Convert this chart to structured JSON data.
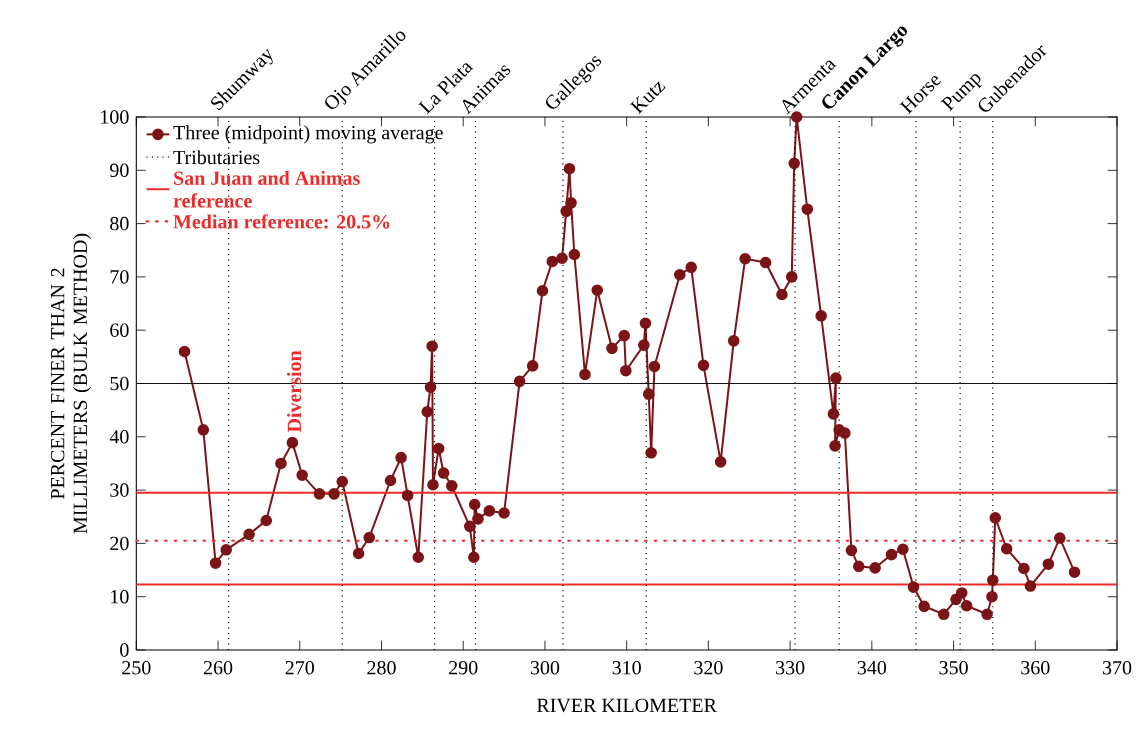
{
  "chart_data": {
    "type": "line",
    "xlabel": "RIVER KILOMETER",
    "ylabel": "PERCENT FINER THAN 2 MILLIMETERS (BULK METHOD)",
    "xlim": [
      250,
      370
    ],
    "ylim": [
      0,
      100
    ],
    "xticks": [
      250,
      260,
      270,
      280,
      290,
      300,
      310,
      320,
      330,
      340,
      350,
      360,
      370
    ],
    "yticks": [
      0,
      10,
      20,
      30,
      40,
      50,
      60,
      70,
      80,
      90,
      100
    ],
    "legend": "top left",
    "marker": "circle",
    "line_style": "solid",
    "series": [
      {
        "name": "Three (midpoint) moving average",
        "color": "#7b1416",
        "x": [
          255.9,
          258.2,
          259.7,
          261.0,
          263.8,
          265.9,
          267.7,
          269.1,
          270.3,
          272.4,
          274.2,
          275.2,
          277.2,
          278.5,
          281.1,
          282.4,
          283.2,
          284.5,
          285.6,
          286.0,
          286.2,
          286.3,
          287.0,
          287.6,
          288.6,
          290.8,
          291.3,
          291.4,
          291.8,
          293.2,
          295.0,
          296.9,
          298.5,
          299.7,
          300.9,
          302.1,
          302.6,
          303.0,
          303.2,
          303.6,
          304.9,
          306.4,
          308.2,
          309.7,
          309.9,
          312.1,
          312.3,
          312.7,
          313.0,
          313.4,
          316.5,
          317.9,
          319.4,
          321.5,
          323.1,
          324.5,
          327.0,
          329.0,
          330.2,
          330.5,
          330.8,
          332.1,
          333.8,
          335.3,
          335.6,
          335.5,
          336.0,
          336.7,
          337.5,
          338.4,
          340.4,
          342.4,
          343.8,
          345.1,
          346.4,
          348.8,
          350.3,
          351.0,
          351.6,
          354.1,
          354.7,
          354.8,
          355.1,
          356.5,
          358.6,
          359.4,
          361.6,
          363.0,
          364.8
        ],
        "values": [
          56.0,
          41.3,
          16.3,
          18.8,
          21.7,
          24.3,
          35.0,
          38.9,
          32.8,
          29.3,
          29.3,
          31.6,
          18.1,
          21.1,
          31.8,
          36.1,
          29.0,
          17.4,
          44.7,
          49.3,
          57.0,
          31.0,
          37.8,
          33.2,
          30.8,
          23.2,
          17.4,
          27.3,
          24.6,
          26.1,
          25.7,
          50.4,
          53.3,
          67.4,
          72.9,
          73.5,
          82.3,
          90.3,
          83.9,
          74.2,
          51.7,
          67.5,
          56.6,
          59.0,
          52.4,
          57.2,
          61.3,
          48.0,
          37.0,
          53.2,
          70.4,
          71.8,
          53.4,
          35.3,
          58.0,
          73.4,
          72.7,
          66.7,
          70.0,
          91.3,
          100.0,
          82.7,
          62.7,
          44.3,
          51.0,
          38.3,
          41.3,
          40.7,
          18.7,
          15.7,
          15.4,
          17.9,
          18.9,
          11.8,
          8.2,
          6.7,
          9.5,
          10.7,
          8.3,
          6.7,
          10.0,
          13.1,
          24.8,
          19.0,
          15.3,
          12.0,
          16.1,
          21.0,
          14.6
        ]
      }
    ],
    "ref_lines": [
      {
        "axis": "y",
        "value": 50,
        "color": "#000000",
        "line_style": "solid"
      },
      {
        "axis": "y",
        "value": 29.5,
        "label": "San Juan and Animas reference",
        "color": "#ee2a2a",
        "line_style": "solid"
      },
      {
        "axis": "y",
        "value": 12.3,
        "color": "#ee2a2a",
        "line_style": "solid"
      },
      {
        "axis": "y",
        "value": 20.5,
        "label": "Median reference: 20.5%",
        "color": "#ee2a2a",
        "line_style": "dotted"
      },
      {
        "axis": "x",
        "value": 261.3,
        "label": "Shumway",
        "color": "#000000",
        "line_style": "dotted"
      },
      {
        "axis": "x",
        "value": 275.2,
        "label": "Ojo Amarillo",
        "color": "#000000",
        "line_style": "dotted"
      },
      {
        "axis": "x",
        "value": 286.5,
        "label": "La Plata",
        "color": "#000000",
        "line_style": "dotted"
      },
      {
        "axis": "x",
        "value": 291.5,
        "label": "Animas",
        "color": "#000000",
        "line_style": "dotted"
      },
      {
        "axis": "x",
        "value": 302.2,
        "label": "Gallegos",
        "color": "#000000",
        "line_style": "dotted"
      },
      {
        "axis": "x",
        "value": 312.4,
        "label": "Kutz",
        "color": "#000000",
        "line_style": "dotted"
      },
      {
        "axis": "x",
        "value": 330.6,
        "label": "Armenta",
        "color": "#000000",
        "line_style": "dotted"
      },
      {
        "axis": "x",
        "value": 336.0,
        "label": "**Canon Largo**",
        "color": "#000000",
        "line_style": "dotted"
      },
      {
        "axis": "x",
        "value": 345.4,
        "label": "Horse",
        "color": "#000000",
        "line_style": "dotted"
      },
      {
        "axis": "x",
        "value": 350.8,
        "label": "Pump",
        "color": "#000000",
        "line_style": "dotted"
      },
      {
        "axis": "x",
        "value": 354.8,
        "label": "Gubenador",
        "color": "#000000",
        "line_style": "dotted"
      }
    ],
    "annotations": [
      "Tributaries",
      {
        "text": "Diversion",
        "x": 269.3,
        "y": 40.5
      }
    ]
  }
}
